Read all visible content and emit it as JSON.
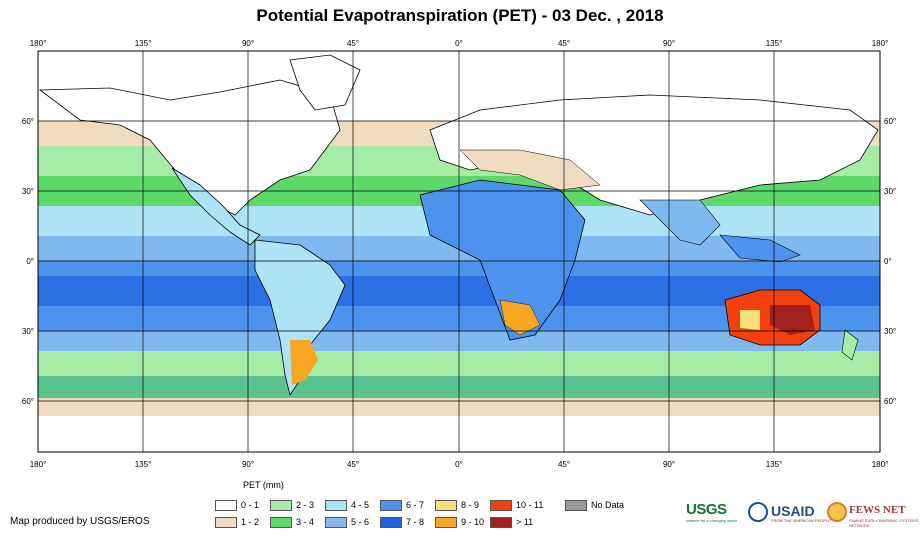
{
  "title": "Potential Evapotranspiration (PET) - 03 Dec. , 2018",
  "map": {
    "lon_labels": [
      "180°",
      "135°",
      "90°",
      "45°",
      "0°",
      "45°",
      "90°",
      "135°",
      "180°"
    ],
    "lat_labels": [
      "60°",
      "30°",
      "0°",
      "30°",
      "60°"
    ],
    "colors": {
      "ocean_blue_dark": "#1f6fe6",
      "ocean_blue_mid": "#4a8fea",
      "ocean_blue_light": "#7fb3ee",
      "cyan": "#a9def2",
      "green_light": "#9fea9f",
      "green": "#5fd86a",
      "tan": "#efdcc0",
      "white": "#ffffff"
    }
  },
  "legend": {
    "title": "PET (mm)",
    "items": [
      {
        "label": "0 - 1",
        "color": "#ffffff"
      },
      {
        "label": "1 - 2",
        "color": "#efdcc0"
      },
      {
        "label": "2 - 3",
        "color": "#a6eca6"
      },
      {
        "label": "3 - 4",
        "color": "#5fd86a"
      },
      {
        "label": "4 - 5",
        "color": "#ade3f4"
      },
      {
        "label": "5 - 6",
        "color": "#7fb9f0"
      },
      {
        "label": "6 - 7",
        "color": "#4b93ec"
      },
      {
        "label": "7 - 8",
        "color": "#1f63e0"
      },
      {
        "label": "8 - 9",
        "color": "#f8e07a"
      },
      {
        "label": "9 - 10",
        "color": "#f5a623"
      },
      {
        "label": "10 - 11",
        "color": "#f2410c"
      },
      {
        "label": "> 11",
        "color": "#a3201e"
      },
      {
        "label": "No Data",
        "color": "#9a9a9a"
      }
    ]
  },
  "credit": "Map produced by USGS/EROS",
  "logos": {
    "usgs": "USGS",
    "usgs_tag": "science for a changing world",
    "usaid": "USAID",
    "usaid_tag": "FROM THE AMERICAN PEOPLE",
    "fews": "FEWS NET",
    "fews_tag": "FAMINE EARLY WARNING SYSTEMS NETWORK"
  }
}
